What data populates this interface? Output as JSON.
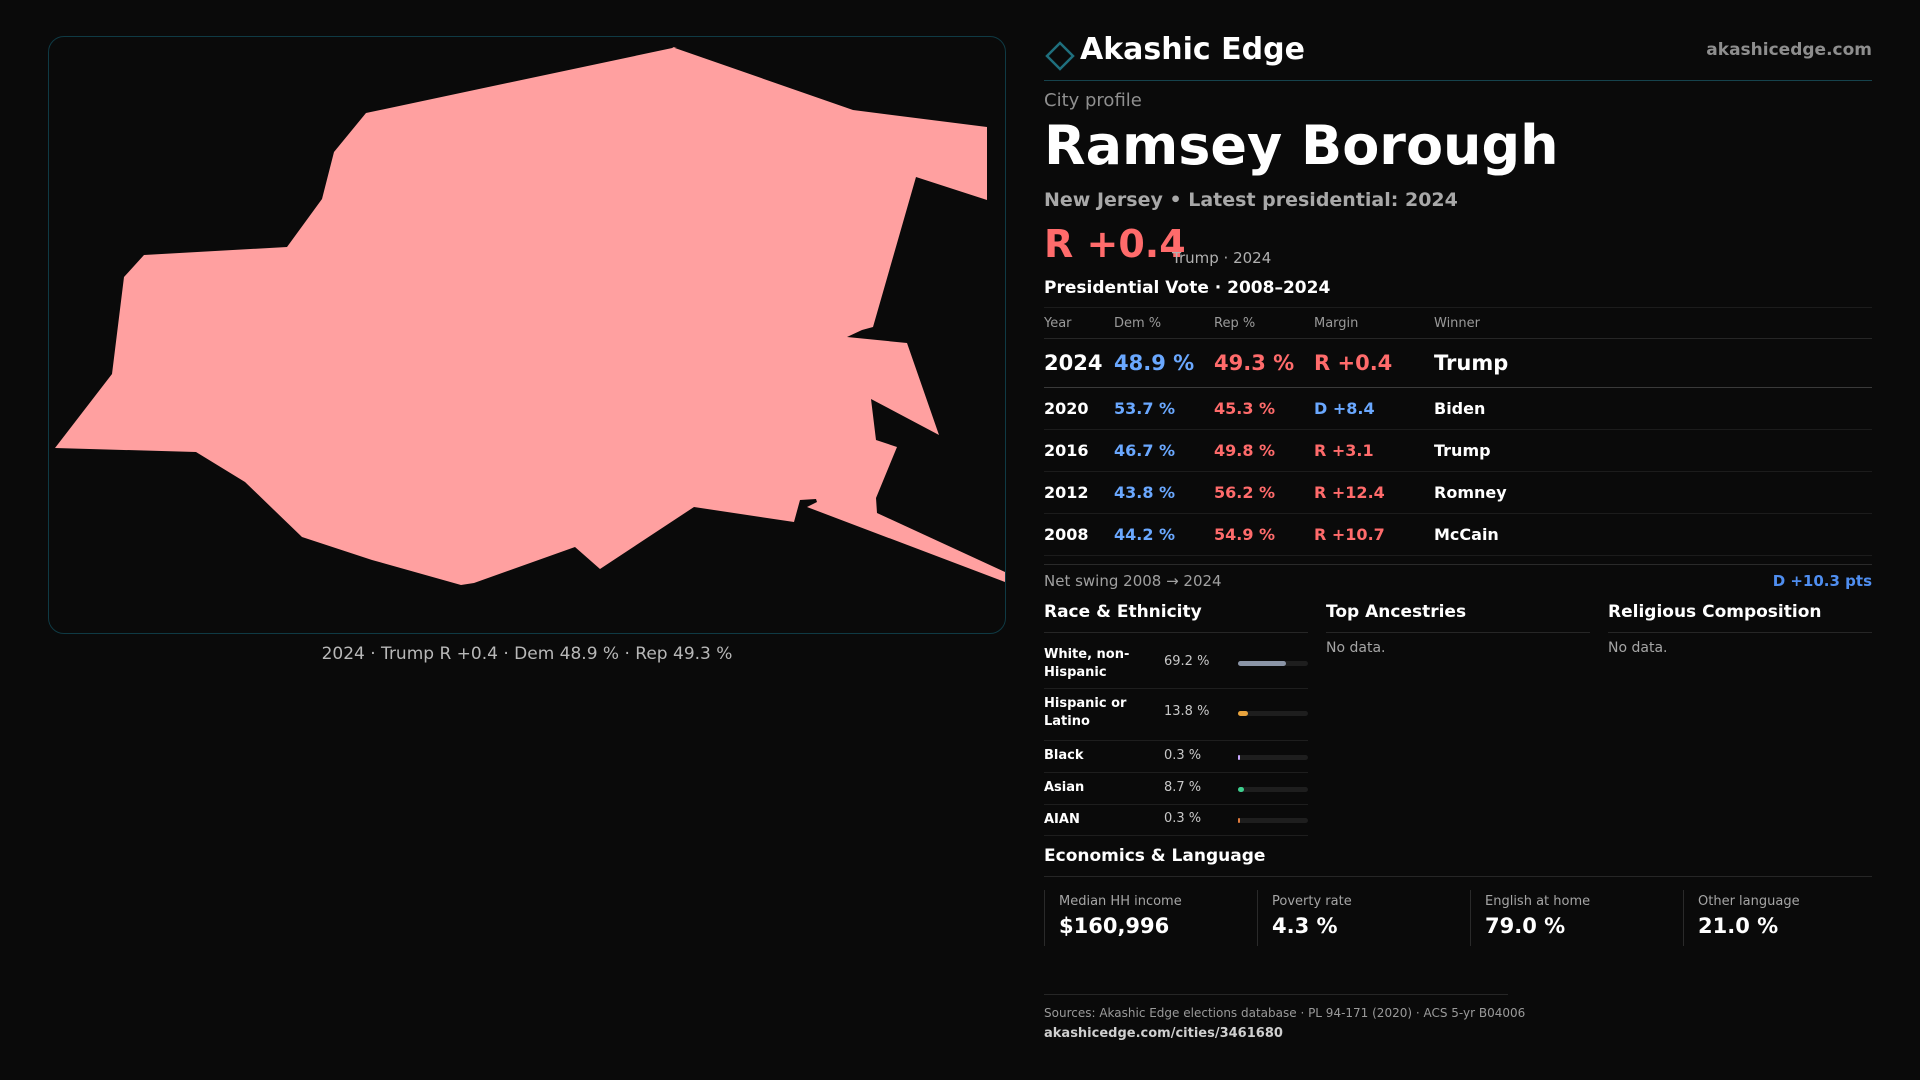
{
  "map": {
    "fill_color": "#ffa0a0",
    "caption": "2024 · Trump R +0.4 · Dem 48.9 % · Rep 49.3 %"
  },
  "header": {
    "brand": "Akashic Edge",
    "logo_icon": "diamond-outline-icon",
    "site": "akashicedge.com"
  },
  "profile": {
    "kicker": "City profile",
    "name": "Ramsey Borough",
    "subtitle": "New Jersey • Latest presidential: 2024",
    "lead_margin": "R +0.4",
    "lead_note": "Trump · 2024"
  },
  "presidential": {
    "title": "Presidential Vote · 2008–2024",
    "columns": [
      "Year",
      "Dem %",
      "Rep %",
      "Margin",
      "Winner"
    ],
    "rows": [
      {
        "year": "2024",
        "dem": "48.9 %",
        "rep": "49.3 %",
        "margin": "R +0.4",
        "party": "R",
        "winner": "Trump"
      },
      {
        "year": "2020",
        "dem": "53.7 %",
        "rep": "45.3 %",
        "margin": "D +8.4",
        "party": "D",
        "winner": "Biden"
      },
      {
        "year": "2016",
        "dem": "46.7 %",
        "rep": "49.8 %",
        "margin": "R +3.1",
        "party": "R",
        "winner": "Trump"
      },
      {
        "year": "2012",
        "dem": "43.8 %",
        "rep": "56.2 %",
        "margin": "R +12.4",
        "party": "R",
        "winner": "Romney"
      },
      {
        "year": "2008",
        "dem": "44.2 %",
        "rep": "54.9 %",
        "margin": "R +10.7",
        "party": "R",
        "winner": "McCain"
      }
    ]
  },
  "swing": {
    "label": "Net swing 2008 → 2024",
    "value": "D +10.3 pts"
  },
  "race": {
    "title": "Race & Ethnicity",
    "rows": [
      {
        "name": "White, non-Hispanic",
        "pct": "69.2 %",
        "share": 0.692,
        "color": "#8a94a6"
      },
      {
        "name": "Hispanic or Latino",
        "pct": "13.8 %",
        "share": 0.138,
        "color": "#e8a33d"
      },
      {
        "name": "Black",
        "pct": "0.3 %",
        "share": 0.003,
        "color": "#c9a8ff"
      },
      {
        "name": "Asian",
        "pct": "8.7 %",
        "share": 0.087,
        "color": "#3ecf8e"
      },
      {
        "name": "AIAN",
        "pct": "0.3 %",
        "share": 0.003,
        "color": "#e07b3d"
      }
    ]
  },
  "ancestry": {
    "title": "Top Ancestries",
    "empty": "No data."
  },
  "religion": {
    "title": "Religious Composition",
    "empty": "No data."
  },
  "economics": {
    "title": "Economics & Language",
    "stats": [
      {
        "label": "Median HH income",
        "value": "$160,996"
      },
      {
        "label": "Poverty rate",
        "value": "4.3 %"
      },
      {
        "label": "English at home",
        "value": "79.0 %"
      },
      {
        "label": "Other language",
        "value": "21.0 %"
      }
    ]
  },
  "footer": {
    "sources": "Sources: Akashic Edge elections database · PL 94-171 (2020) · ACS 5-yr B04006",
    "url": "akashicedge.com/cities/3461680"
  },
  "colors": {
    "dem": "#6aa8ff",
    "rep": "#ff6b6b",
    "accent": "#16434d"
  }
}
